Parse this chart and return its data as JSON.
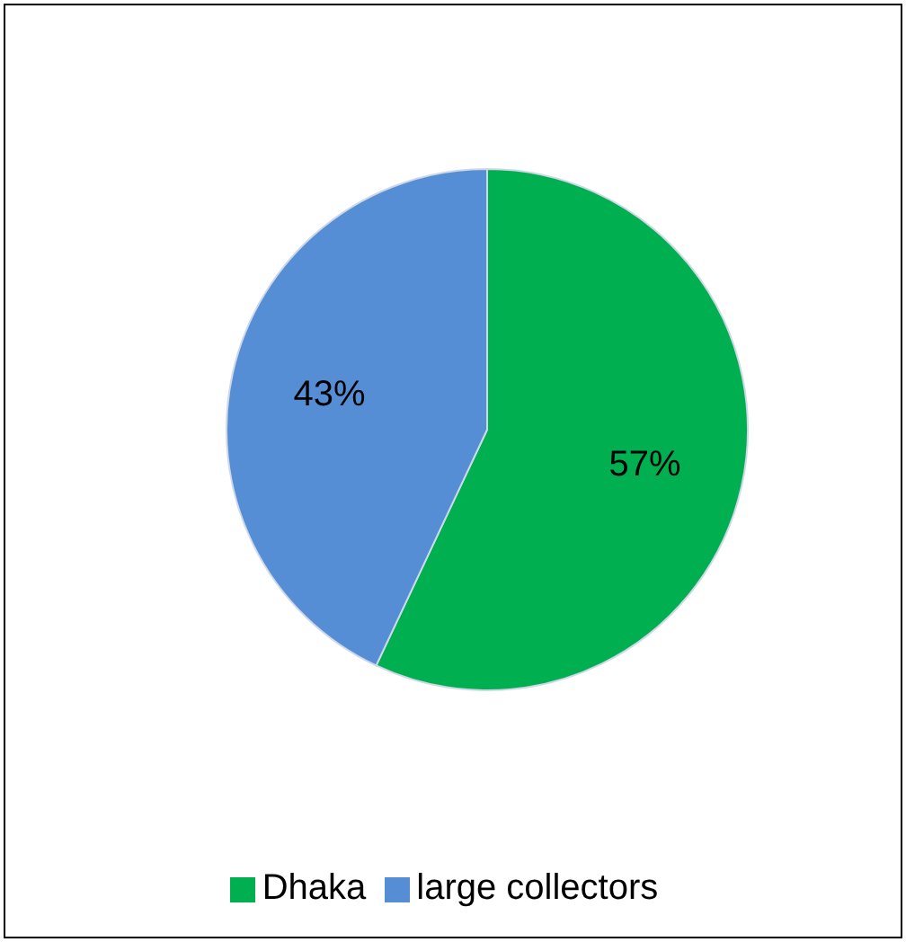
{
  "chart_data": {
    "type": "pie",
    "categories": [
      "Dhaka",
      "large collectors"
    ],
    "values": [
      57,
      43
    ],
    "colors": [
      "#00b050",
      "#558ed5"
    ],
    "value_labels": [
      "57%",
      "43%"
    ],
    "legend": "bottom"
  }
}
